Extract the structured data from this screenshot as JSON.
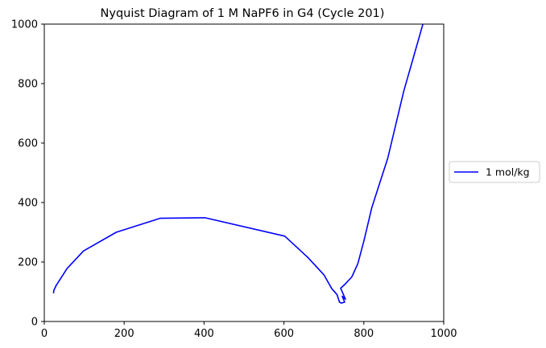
{
  "chart_data": {
    "type": "line",
    "title": "Nyquist Diagram of 1 M NaPF6 in G4 (Cycle 201)",
    "xlabel": "",
    "ylabel": "",
    "xlim": [
      0,
      1000
    ],
    "ylim": [
      0,
      1000
    ],
    "xticks": [
      0,
      200,
      400,
      600,
      800,
      1000
    ],
    "yticks": [
      0,
      200,
      400,
      600,
      800,
      1000
    ],
    "grid": false,
    "legend": {
      "placement": "outside-right"
    },
    "series": [
      {
        "name": "1 mol/kg",
        "color": "#0000ff",
        "x": [
          23,
          24,
          30,
          57,
          98,
          180,
          290,
          402,
          602,
          660,
          700,
          720,
          733,
          739,
          744,
          752,
          746,
          754,
          742,
          752,
          770,
          785,
          800,
          820,
          860,
          900,
          950
        ],
        "y": [
          95,
          105,
          122,
          178,
          237,
          300,
          347,
          349,
          287,
          215,
          157,
          110,
          90,
          65,
          62,
          65,
          85,
          75,
          112,
          124,
          150,
          195,
          270,
          383,
          550,
          775,
          1010
        ]
      }
    ]
  }
}
